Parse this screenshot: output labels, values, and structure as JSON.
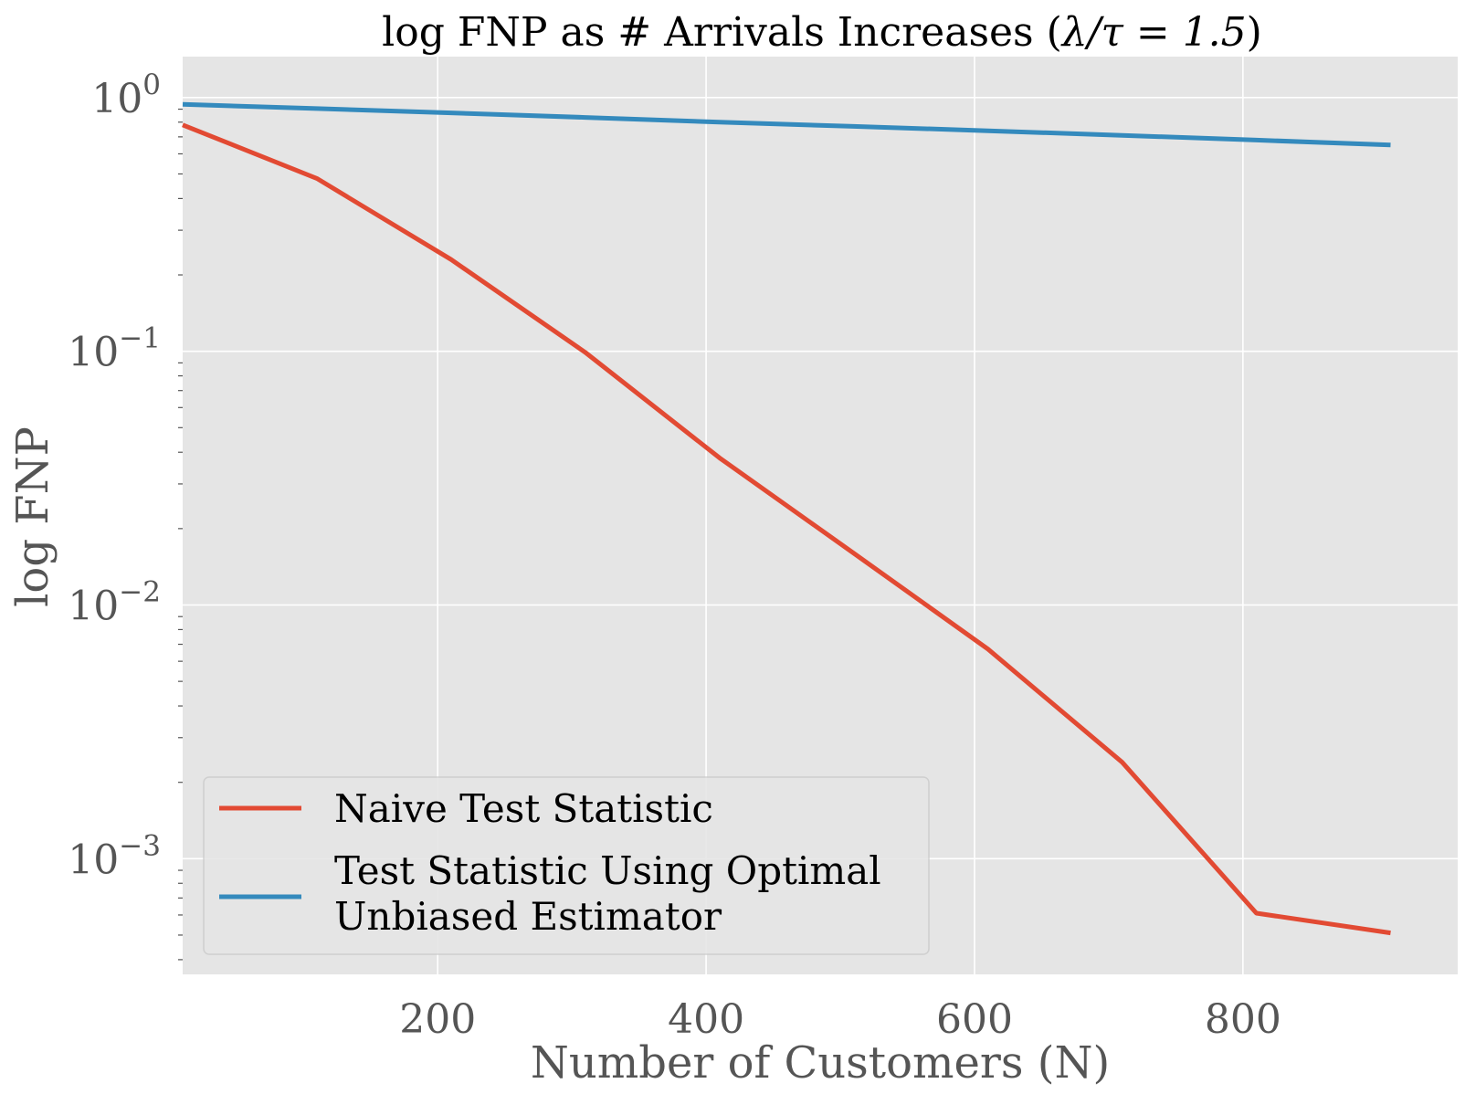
{
  "chart_data": {
    "type": "line",
    "title_prefix": "log FNP as # Arrivals Increases (",
    "title_math": "λ/τ = 1.5",
    "title_suffix": ")",
    "xlabel": "Number of Customers (N)",
    "ylabel": "log FNP",
    "yscale": "log",
    "xlim": [
      10,
      960
    ],
    "ylim": [
      0.00035,
      1.45
    ],
    "grid": true,
    "legend_position": "lower-left",
    "x_ticks": [
      200,
      400,
      600,
      800
    ],
    "y_ticks": [
      {
        "value": 1,
        "base": "10",
        "exp": "0"
      },
      {
        "value": 0.1,
        "base": "10",
        "exp": "−1"
      },
      {
        "value": 0.01,
        "base": "10",
        "exp": "−2"
      },
      {
        "value": 0.001,
        "base": "10",
        "exp": "−3"
      }
    ],
    "x": [
      10,
      110,
      210,
      310,
      410,
      510,
      610,
      710,
      810,
      910
    ],
    "series": [
      {
        "name": "Naive Test Statistic",
        "color": "#E24A33",
        "values": [
          0.78,
          0.48,
          0.23,
          0.099,
          0.038,
          0.016,
          0.0067,
          0.0024,
          0.00061,
          0.00051
        ]
      },
      {
        "name_lines": [
          "Test Statistic Using Optimal",
          "Unbiased Estimator"
        ],
        "color": "#348ABD",
        "values": [
          0.94,
          0.905,
          0.87,
          0.835,
          0.8,
          0.77,
          0.74,
          0.71,
          0.68,
          0.65
        ]
      }
    ],
    "plot_background": "#E5E5E5",
    "grid_color": "#FFFFFF"
  }
}
